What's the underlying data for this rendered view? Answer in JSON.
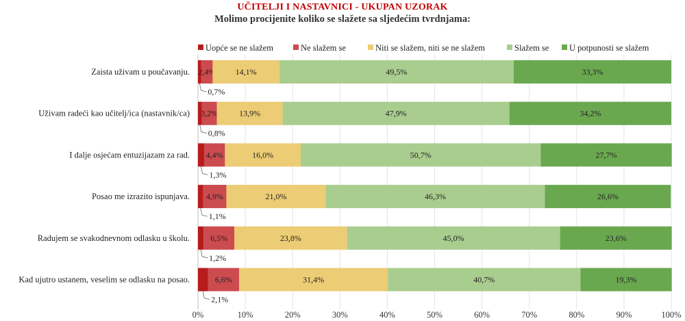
{
  "title": "UČITELJI I NASTAVNICI - UKUPAN UZORAK",
  "subtitle": "Molimo procijenite koliko se slažete sa sljedećim tvrdnjama:",
  "chart_data": {
    "type": "bar",
    "orientation": "horizontal",
    "stacked": true,
    "categories": [
      "Zaista uživam u poučavanju.",
      "Uživam radeći kao učitelj/ica (nastavnik/ca)",
      "I dalje osjećam entuzijazam za rad.",
      "Posao me izrazito ispunjava.",
      "Radujem se svakodnevnom odlasku u školu.",
      "Kad ujutro ustanem, veselim se odlasku na posao."
    ],
    "series": [
      {
        "name": "Uopće se ne slažem",
        "color": "#b71c1c",
        "values": [
          0.7,
          0.8,
          1.3,
          1.1,
          1.2,
          2.1
        ],
        "labels": [
          "0,7%",
          "0,8%",
          "1,3%",
          "1,1%",
          "1,2%",
          "2,1%"
        ]
      },
      {
        "name": "Ne slažem se",
        "color": "#cc4b4f",
        "values": [
          2.4,
          3.2,
          4.4,
          4.9,
          6.5,
          6.6
        ],
        "labels": [
          "2,4%",
          "3,2%",
          "4,4%",
          "4,9%",
          "6,5%",
          "6,6%"
        ]
      },
      {
        "name": "Niti se slažem, niti se ne slažem",
        "color": "#eccc74",
        "values": [
          14.1,
          13.9,
          16.0,
          21.0,
          23.8,
          31.4
        ],
        "labels": [
          "14,1%",
          "13,9%",
          "16,0%",
          "21,0%",
          "23,8%",
          "31,4%"
        ]
      },
      {
        "name": "Slažem se",
        "color": "#a9cd8e",
        "values": [
          49.5,
          47.9,
          50.7,
          46.3,
          45.0,
          40.7
        ],
        "labels": [
          "49,5%",
          "47,9%",
          "50,7%",
          "46,3%",
          "45,0%",
          "40,7%"
        ]
      },
      {
        "name": "U potpunosti se slažem",
        "color": "#6aa84f",
        "values": [
          33.3,
          34.2,
          27.7,
          26.6,
          23.6,
          19.3
        ],
        "labels": [
          "33,3%",
          "34,2%",
          "27,7%",
          "26,6%",
          "23,6%",
          "19,3%"
        ]
      }
    ],
    "xlim": [
      0,
      100
    ],
    "xticks": [
      "0%",
      "10%",
      "20%",
      "30%",
      "40%",
      "50%",
      "60%",
      "70%",
      "80%",
      "90%",
      "100%"
    ],
    "grid": true,
    "legend_position": "top"
  }
}
